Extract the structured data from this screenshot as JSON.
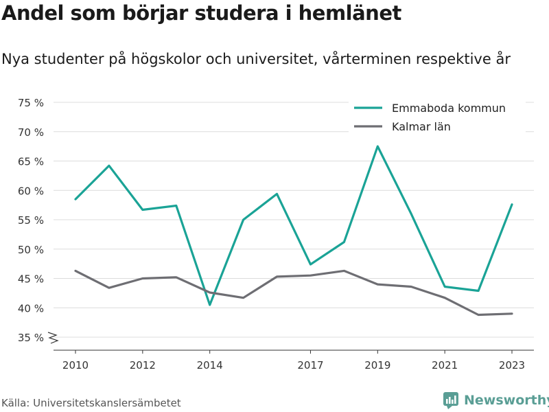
{
  "title": "Andel som börjar studera i hemlänet",
  "subtitle": "Nya studenter på högskolor och universitet, vårterminen respektive år",
  "source": "Källa: Universitetskanslersämbetet",
  "brand": {
    "name": "Newsworthy",
    "icon": "newsworthy-logo-icon",
    "color": "#5a9e95"
  },
  "chart_data": {
    "type": "line",
    "title": "Andel som börjar studera i hemlänet",
    "subtitle": "Nya studenter på högskolor och universitet, vårterminen respektive år",
    "x": [
      2010,
      2011,
      2012,
      2013,
      2014,
      2015,
      2016,
      2017,
      2018,
      2019,
      2020,
      2021,
      2022,
      2023
    ],
    "x_ticks": [
      2010,
      2012,
      2014,
      2017,
      2019,
      2021,
      2023
    ],
    "ylim": [
      35,
      75
    ],
    "y_ticks": [
      35,
      40,
      45,
      50,
      55,
      60,
      65,
      70,
      75
    ],
    "y_tick_suffix": " %",
    "grid": true,
    "legend": "top-right",
    "series": [
      {
        "name": "Emmaboda kommun",
        "color": "#1aa396",
        "values": [
          58.5,
          64.2,
          56.7,
          57.4,
          40.5,
          55.0,
          59.4,
          47.4,
          51.2,
          67.5,
          56.0,
          43.6,
          42.9,
          57.6
        ]
      },
      {
        "name": "Kalmar län",
        "color": "#6e6e73",
        "values": [
          46.3,
          43.4,
          45.0,
          45.2,
          42.6,
          41.7,
          45.3,
          45.5,
          46.3,
          44.0,
          43.6,
          41.7,
          38.8,
          39.0
        ]
      }
    ]
  }
}
